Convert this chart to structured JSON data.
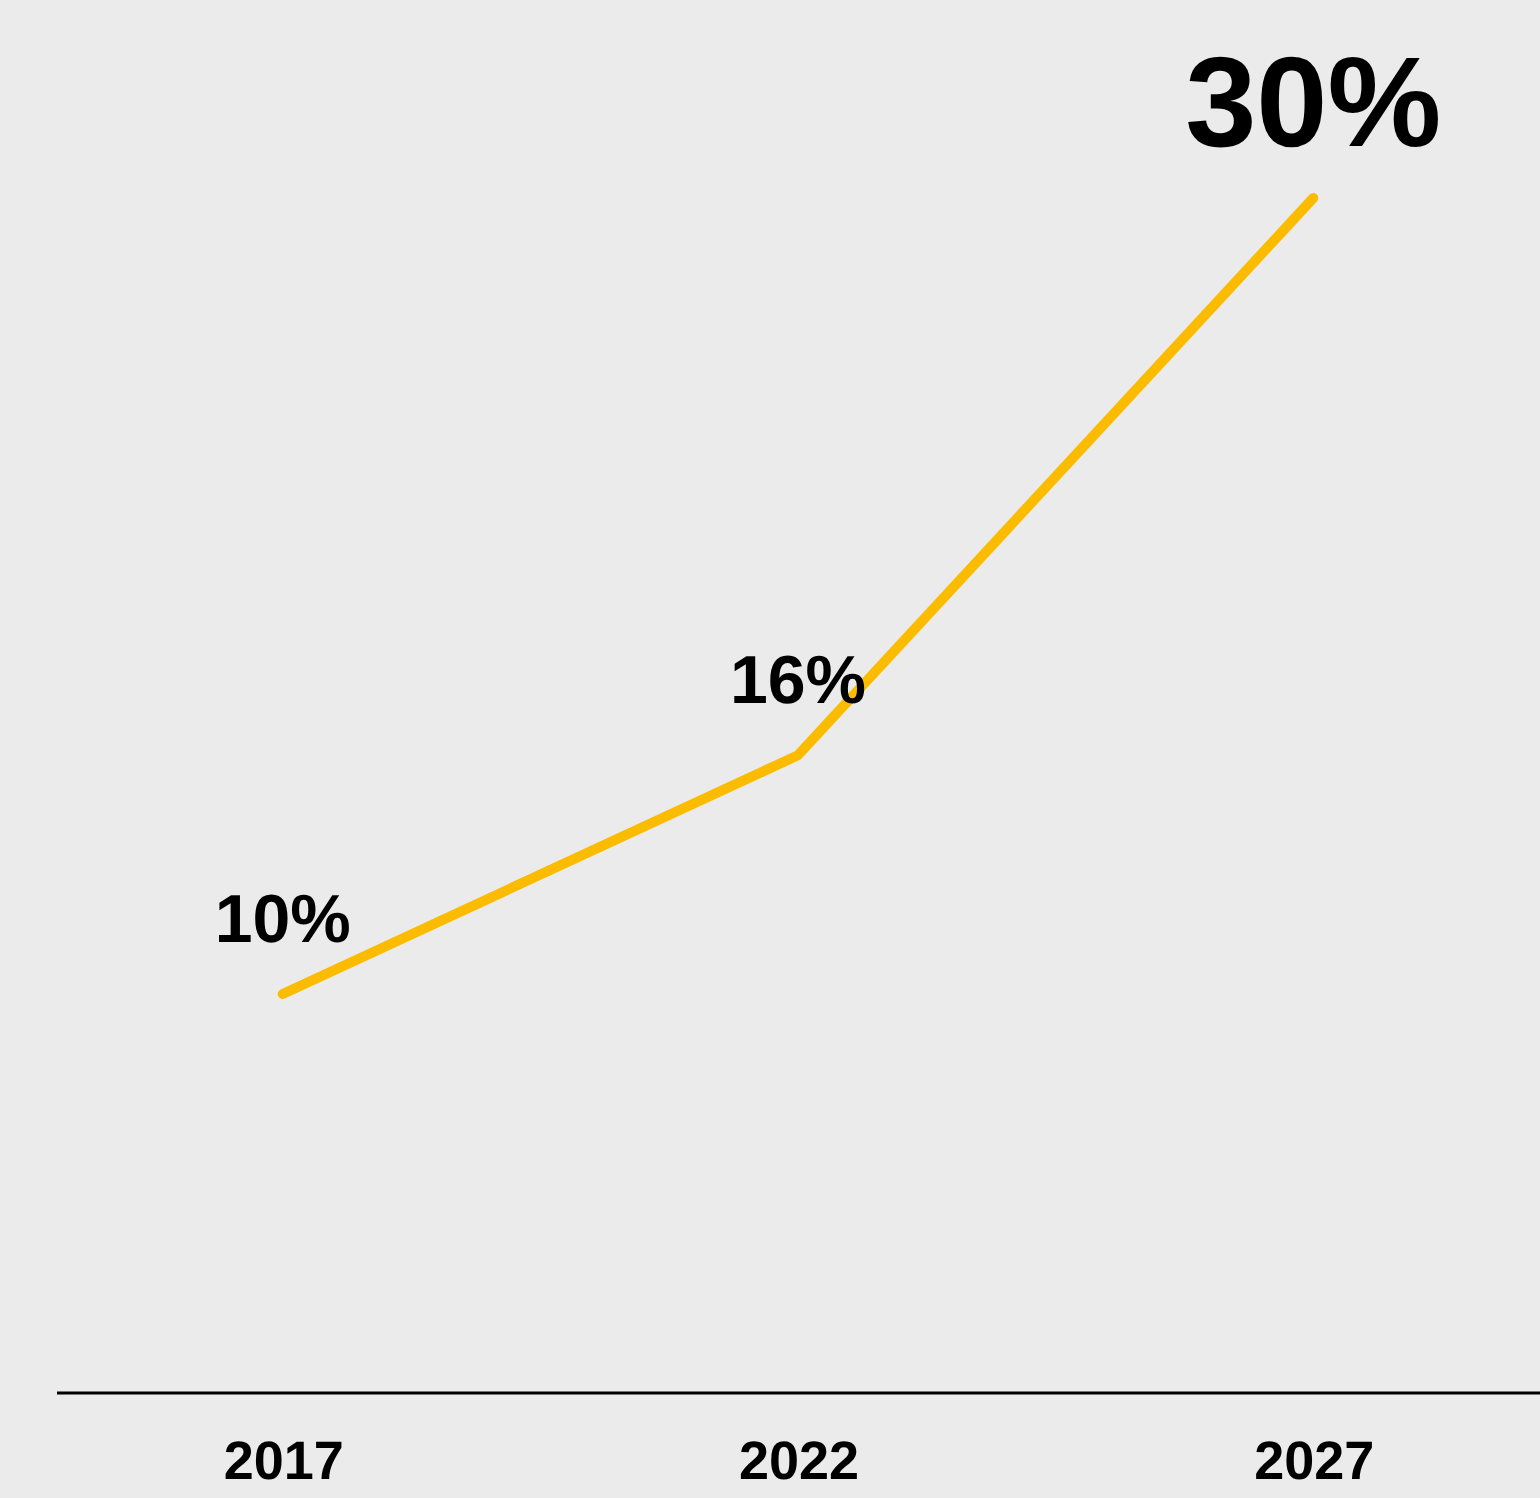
{
  "chart_data": {
    "type": "line",
    "categories": [
      "2017",
      "2022",
      "2027"
    ],
    "series": [
      {
        "color": "#fbbc00",
        "values": [
          10,
          16,
          30
        ],
        "value_labels": [
          "10%",
          "16%",
          "30%"
        ]
      }
    ],
    "grid": false,
    "marker": "none",
    "line_style": "solid",
    "tick_labels": "x"
  }
}
